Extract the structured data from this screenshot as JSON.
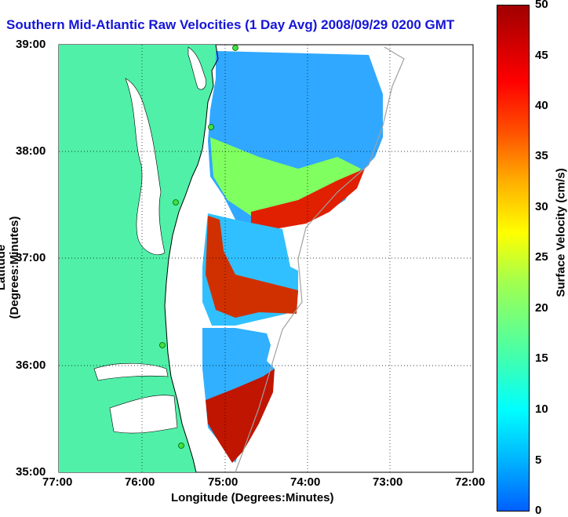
{
  "title": "Southern Mid-Atlantic Raw Velocities (1 Day Avg) 2008/09/29 0200 GMT",
  "xlabel": "Longitude (Degrees:Minutes)",
  "ylabel": "Latitude (Degrees:Minutes)",
  "x_ticks": [
    "77:00",
    "76:00",
    "75:00",
    "74:00",
    "73:00",
    "72:00"
  ],
  "y_ticks": [
    "39:00",
    "38:00",
    "37:00",
    "36:00",
    "35:00"
  ],
  "colorbar": {
    "label": "Surface Velocity (cm/s)",
    "ticks": [
      "50",
      "45",
      "40",
      "35",
      "30",
      "25",
      "20",
      "15",
      "10",
      "5",
      "0"
    ],
    "range": [
      0,
      50
    ]
  },
  "colors": {
    "land": "#50f0a8",
    "title": "#1515d8"
  }
}
